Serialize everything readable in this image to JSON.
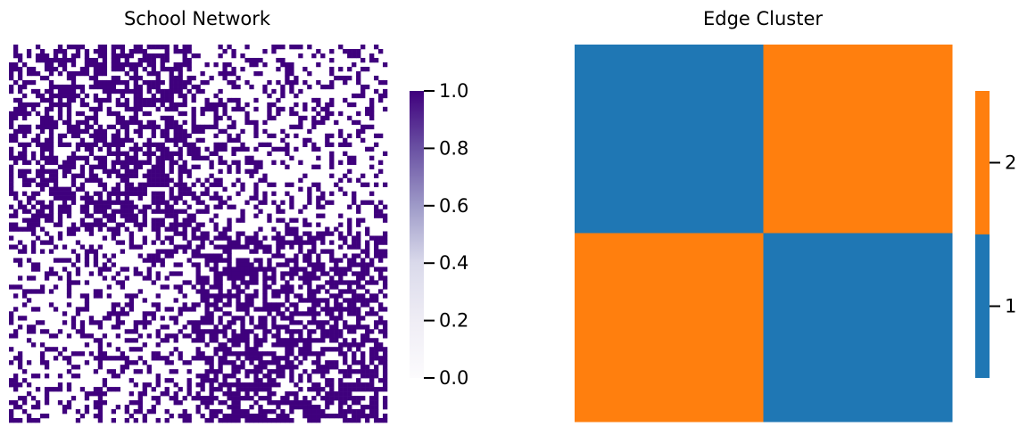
{
  "chart_data": [
    {
      "type": "heatmap",
      "title": "School Network",
      "colormap": "Purples",
      "color_low": "#fcfbfd",
      "color_high": "#3f007d",
      "matrix_size": 85,
      "value_set": [
        0,
        1
      ],
      "block_edge_density": [
        [
          0.6,
          0.3
        ],
        [
          0.3,
          0.6
        ]
      ],
      "colorbar": {
        "ticks": [
          "0.0",
          "0.2",
          "0.4",
          "0.6",
          "0.8",
          "1.0"
        ],
        "vmin": 0,
        "vmax": 1
      }
    },
    {
      "type": "heatmap",
      "title": "Edge Cluster",
      "matrix": [
        [
          1,
          2
        ],
        [
          2,
          1
        ]
      ],
      "colors": {
        "1": "#1f77b4",
        "2": "#ff7f0e"
      },
      "colorbar": {
        "ticks": [
          "1",
          "2"
        ]
      }
    }
  ]
}
